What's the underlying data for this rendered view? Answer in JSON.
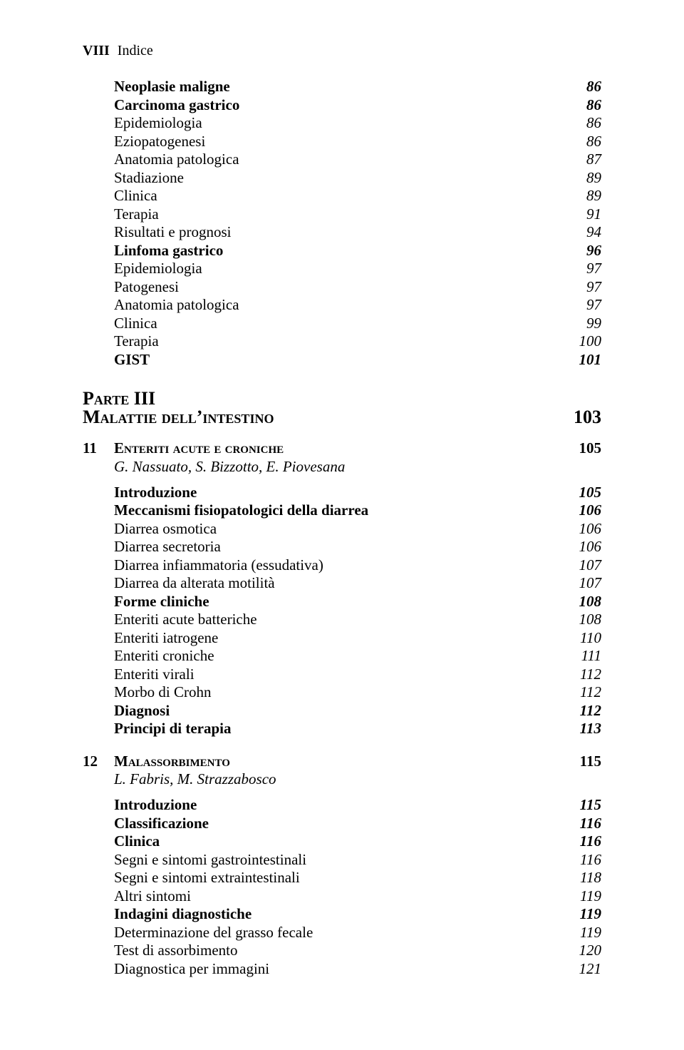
{
  "header": {
    "roman": "VIII",
    "label": "Indice"
  },
  "block1": [
    {
      "label": "Neoplasie maligne",
      "page": "86",
      "bold": true,
      "italicPage": true
    },
    {
      "label": "Carcinoma gastrico",
      "page": "86",
      "bold": true,
      "italicPage": true
    },
    {
      "label": "Epidemiologia",
      "page": "86",
      "italicPage": true
    },
    {
      "label": "Eziopatogenesi",
      "page": "86",
      "italicPage": true
    },
    {
      "label": "Anatomia patologica",
      "page": "87",
      "italicPage": true
    },
    {
      "label": "Stadiazione",
      "page": "89",
      "italicPage": true
    },
    {
      "label": "Clinica",
      "page": "89",
      "italicPage": true
    },
    {
      "label": "Terapia",
      "page": "91",
      "italicPage": true
    },
    {
      "label": "Risultati e prognosi",
      "page": "94",
      "italicPage": true
    },
    {
      "label": "Linfoma gastrico",
      "page": "96",
      "bold": true,
      "italicPage": true
    },
    {
      "label": "Epidemiologia",
      "page": "97",
      "italicPage": true
    },
    {
      "label": "Patogenesi",
      "page": "97",
      "italicPage": true
    },
    {
      "label": "Anatomia patologica",
      "page": "97",
      "italicPage": true
    },
    {
      "label": "Clinica",
      "page": "99",
      "italicPage": true
    },
    {
      "label": "Terapia",
      "page": "100",
      "italicPage": true
    },
    {
      "label": "GIST",
      "page": "101",
      "bold": true,
      "italicPage": true
    }
  ],
  "part": {
    "line1": "Parte III",
    "line2": "Malattie dell’intestino",
    "page": "103"
  },
  "chapter11": {
    "no": "11",
    "title": "Enteriti acute e croniche",
    "page": "105",
    "authors": "G. Nassuato, S. Bizzotto, E. Piovesana",
    "items": [
      {
        "label": "Introduzione",
        "page": "105",
        "bold": true,
        "italicPage": true
      },
      {
        "label": "Meccanismi fisiopatologici della diarrea",
        "page": "106",
        "bold": true,
        "italicPage": true
      },
      {
        "label": "Diarrea osmotica",
        "page": "106",
        "italicPage": true
      },
      {
        "label": "Diarrea secretoria",
        "page": "106",
        "italicPage": true
      },
      {
        "label": "Diarrea infiammatoria (essudativa)",
        "page": "107",
        "italicPage": true
      },
      {
        "label": "Diarrea da alterata motilità",
        "page": "107",
        "italicPage": true
      },
      {
        "label": "Forme cliniche",
        "page": "108",
        "bold": true,
        "italicPage": true
      },
      {
        "label": "Enteriti acute batteriche",
        "page": "108",
        "italicPage": true
      },
      {
        "label": "Enteriti iatrogene",
        "page": "110",
        "italicPage": true
      },
      {
        "label": "Enteriti croniche",
        "page": "111",
        "italicPage": true
      },
      {
        "label": "Enteriti virali",
        "page": "112",
        "italicPage": true
      },
      {
        "label": "Morbo di Crohn",
        "page": "112",
        "italicPage": true
      },
      {
        "label": "Diagnosi",
        "page": "112",
        "bold": true,
        "italicPage": true
      },
      {
        "label": "Principi di terapia",
        "page": "113",
        "bold": true,
        "italicPage": true
      }
    ]
  },
  "chapter12": {
    "no": "12",
    "title": "Malassorbimento",
    "page": "115",
    "authors": "L. Fabris, M. Strazzabosco",
    "items": [
      {
        "label": "Introduzione",
        "page": "115",
        "bold": true,
        "italicPage": true
      },
      {
        "label": "Classificazione",
        "page": "116",
        "bold": true,
        "italicPage": true
      },
      {
        "label": "Clinica",
        "page": "116",
        "bold": true,
        "italicPage": true
      },
      {
        "label": "Segni e sintomi gastrointestinali",
        "page": "116",
        "italicPage": true
      },
      {
        "label": "Segni e sintomi extraintestinali",
        "page": "118",
        "italicPage": true
      },
      {
        "label": "Altri sintomi",
        "page": "119",
        "italicPage": true
      },
      {
        "label": "Indagini diagnostiche",
        "page": "119",
        "bold": true,
        "italicPage": true
      },
      {
        "label": "Determinazione del grasso fecale",
        "page": "119",
        "italicPage": true
      },
      {
        "label": "Test di assorbimento",
        "page": "120",
        "italicPage": true
      },
      {
        "label": "Diagnostica per immagini",
        "page": "121",
        "italicPage": true
      }
    ]
  }
}
